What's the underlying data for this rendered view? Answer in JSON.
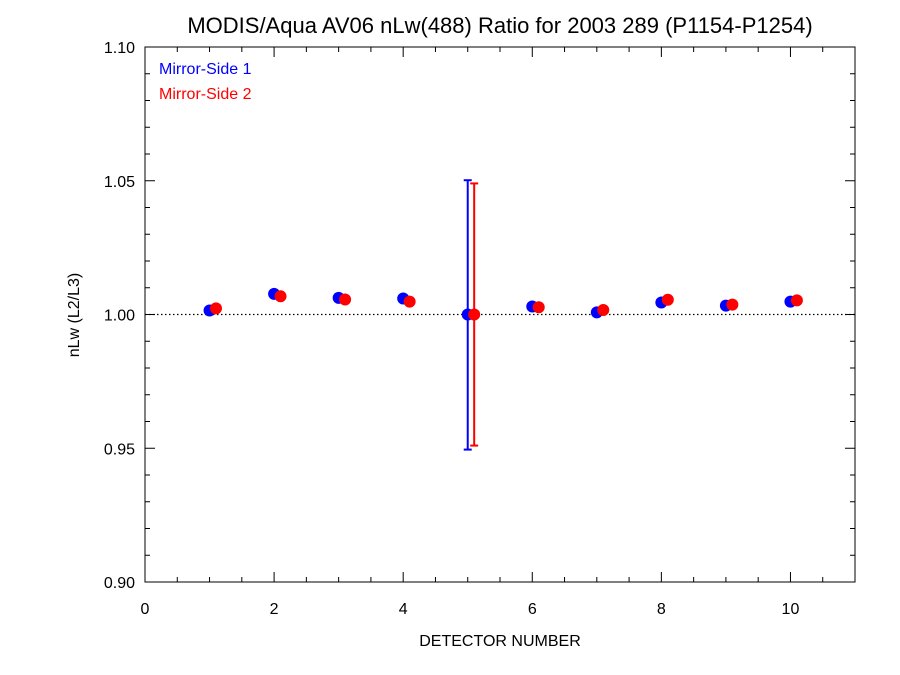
{
  "chart_data": {
    "type": "scatter",
    "title": "MODIS/Aqua AV06 nLw(488) Ratio for 2003 289 (P1154-P1254)",
    "xlabel": "DETECTOR NUMBER",
    "ylabel": "nLw (L2/L3)",
    "xlim": [
      0,
      11
    ],
    "ylim": [
      0.9,
      1.1
    ],
    "xticks": [
      0,
      2,
      4,
      6,
      8,
      10
    ],
    "xtick_labels": [
      "0",
      "2",
      "4",
      "6",
      "8",
      "10"
    ],
    "yticks": [
      0.9,
      0.95,
      1.0,
      1.05,
      1.1
    ],
    "ytick_labels": [
      "0.90",
      "0.95",
      "1.00",
      "1.05",
      "1.10"
    ],
    "reference_line": 1.0,
    "legend_position": "top-left",
    "series": [
      {
        "name": "Mirror-Side 1",
        "color": "#0000ff",
        "x": [
          1,
          2,
          3,
          4,
          5,
          6,
          7,
          8,
          9,
          10
        ],
        "y": [
          1.0015,
          1.0077,
          1.0062,
          1.006,
          1.0,
          1.003,
          1.0008,
          1.0045,
          1.0033,
          1.0048
        ],
        "error_bars": [
          {
            "x": 5,
            "low": 0.9495,
            "high": 1.0502
          }
        ]
      },
      {
        "name": "Mirror-Side 2",
        "color": "#ff0000",
        "x": [
          1,
          2,
          3,
          4,
          5,
          6,
          7,
          8,
          9,
          10
        ],
        "y": [
          1.0023,
          1.0068,
          1.0056,
          1.0048,
          1.0,
          1.0027,
          1.0017,
          1.0055,
          1.0037,
          1.0053
        ],
        "error_bars": [
          {
            "x": 5,
            "low": 0.951,
            "high": 1.049
          }
        ]
      }
    ]
  }
}
